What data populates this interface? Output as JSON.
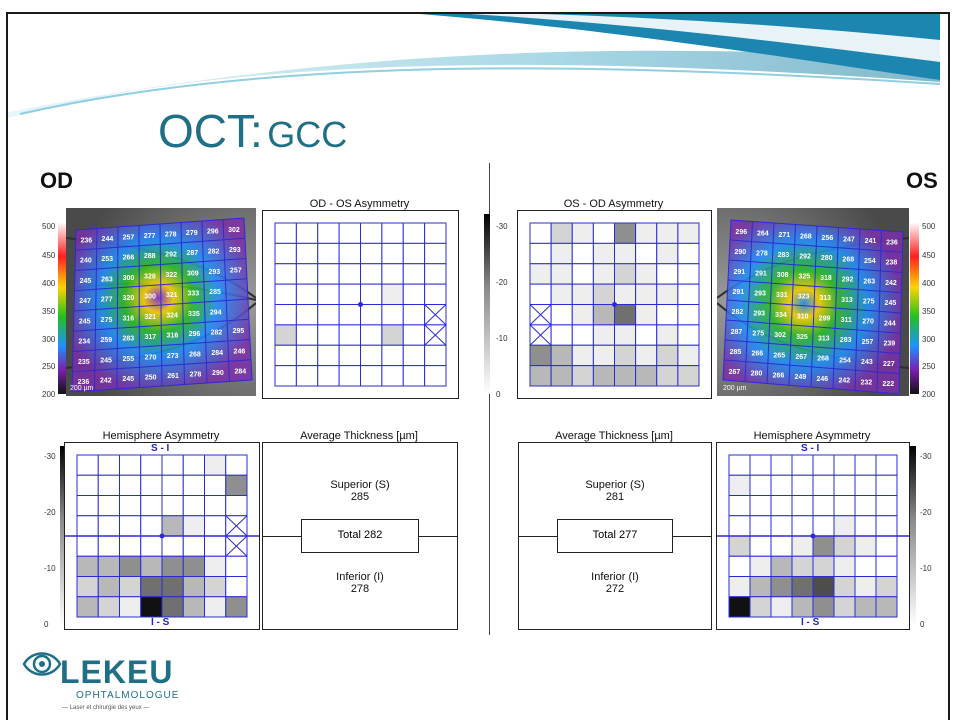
{
  "slide": {
    "title_main": "OCT:",
    "title_sub": "GCC"
  },
  "left_eye": {
    "label": "OD",
    "asym_title": "OD - OS Asymmetry",
    "hemi_title": "Hemisphere Asymmetry",
    "hemi_top": "S - I",
    "hemi_bottom": "I - S",
    "avg_title": "Average Thickness [µm]",
    "superior_label": "Superior (S)",
    "superior_value": "285",
    "total_label": "Total 282",
    "inferior_label": "Inferior (I)",
    "inferior_value": "278",
    "scale_bar": "200 µm",
    "thickness_scale": [
      "500",
      "450",
      "400",
      "350",
      "300",
      "250",
      "200"
    ],
    "diff_scale_top": [
      "-30",
      "-20",
      "-10",
      "0"
    ],
    "hemi_scale": [
      "-30",
      "-20",
      "-10",
      "0"
    ],
    "thickness_grid": [
      [
        "236",
        "244",
        "257",
        "277",
        "278",
        "279",
        "296",
        "302"
      ],
      [
        "240",
        "253",
        "266",
        "288",
        "292",
        "287",
        "282",
        "293"
      ],
      [
        "245",
        "263",
        "300",
        "328",
        "322",
        "309",
        "293",
        "257"
      ],
      [
        "247",
        "277",
        "320",
        "300",
        "321",
        "333",
        "285",
        ""
      ],
      [
        "245",
        "275",
        "316",
        "321",
        "324",
        "335",
        "294",
        ""
      ],
      [
        "234",
        "259",
        "283",
        "317",
        "316",
        "296",
        "282",
        "295"
      ],
      [
        "235",
        "245",
        "255",
        "270",
        "273",
        "268",
        "284",
        "246"
      ],
      [
        "236",
        "242",
        "245",
        "250",
        "261",
        "278",
        "290",
        "284"
      ]
    ],
    "asym_shades": [
      [
        0,
        0,
        0,
        0,
        0,
        0,
        0,
        0
      ],
      [
        0,
        0,
        0,
        0,
        0,
        0,
        0,
        0
      ],
      [
        0,
        0,
        0,
        0,
        0,
        0,
        0,
        0
      ],
      [
        0,
        0,
        0,
        0,
        0,
        1,
        0,
        0
      ],
      [
        0,
        0,
        0,
        0,
        0,
        0,
        0,
        0
      ],
      [
        2,
        0,
        0,
        0,
        0,
        2,
        0,
        0
      ],
      [
        0,
        0,
        0,
        0,
        0,
        0,
        0,
        0
      ],
      [
        0,
        0,
        0,
        0,
        0,
        0,
        0,
        0
      ]
    ],
    "hemi_shades": [
      [
        0,
        0,
        0,
        0,
        0,
        0,
        1,
        0
      ],
      [
        0,
        0,
        0,
        0,
        0,
        0,
        0,
        4
      ],
      [
        0,
        0,
        0,
        0,
        0,
        0,
        0,
        0
      ],
      [
        0,
        0,
        0,
        0,
        3,
        1,
        0,
        0
      ],
      [
        0,
        0,
        0,
        0,
        0,
        0,
        0,
        0
      ],
      [
        3,
        3,
        4,
        3,
        4,
        4,
        1,
        0
      ],
      [
        2,
        3,
        2,
        5,
        5,
        3,
        2,
        0
      ],
      [
        3,
        2,
        1,
        7,
        5,
        3,
        1,
        4
      ]
    ]
  },
  "right_eye": {
    "label": "OS",
    "asym_title": "OS - OD Asymmetry",
    "hemi_title": "Hemisphere Asymmetry",
    "hemi_top": "S - I",
    "hemi_bottom": "I - S",
    "avg_title": "Average Thickness [µm]",
    "superior_label": "Superior (S)",
    "superior_value": "281",
    "total_label": "Total 277",
    "inferior_label": "Inferior (I)",
    "inferior_value": "272",
    "scale_bar": "200 µm",
    "thickness_scale": [
      "500",
      "450",
      "400",
      "350",
      "300",
      "250",
      "200"
    ],
    "diff_scale": [
      "-30",
      "-20",
      "-10",
      "0"
    ],
    "hemi_scale": [
      "-30",
      "-20",
      "-10",
      "0"
    ],
    "thickness_grid": [
      [
        "296",
        "264",
        "271",
        "268",
        "256",
        "247",
        "241",
        "236"
      ],
      [
        "290",
        "278",
        "283",
        "292",
        "280",
        "268",
        "254",
        "238"
      ],
      [
        "291",
        "291",
        "308",
        "325",
        "318",
        "292",
        "263",
        "242"
      ],
      [
        "291",
        "293",
        "331",
        "323",
        "313",
        "313",
        "275",
        "245"
      ],
      [
        "282",
        "293",
        "334",
        "310",
        "299",
        "311",
        "270",
        "244"
      ],
      [
        "287",
        "275",
        "302",
        "325",
        "313",
        "283",
        "257",
        "239"
      ],
      [
        "285",
        "266",
        "265",
        "267",
        "268",
        "254",
        "243",
        "227"
      ],
      [
        "267",
        "280",
        "266",
        "249",
        "246",
        "242",
        "232",
        "222"
      ]
    ],
    "asym_shades": [
      [
        0,
        2,
        1,
        0,
        4,
        1,
        1,
        1
      ],
      [
        0,
        1,
        0,
        1,
        1,
        0,
        1,
        0
      ],
      [
        1,
        1,
        0,
        1,
        2,
        1,
        0,
        0
      ],
      [
        0,
        1,
        1,
        2,
        1,
        1,
        1,
        0
      ],
      [
        0,
        0,
        1,
        3,
        5,
        1,
        0,
        0
      ],
      [
        0,
        0,
        0,
        1,
        1,
        0,
        1,
        0
      ],
      [
        4,
        3,
        1,
        1,
        2,
        1,
        2,
        1
      ],
      [
        3,
        3,
        2,
        3,
        3,
        3,
        2,
        2
      ]
    ],
    "hemi_shades": [
      [
        0,
        0,
        0,
        0,
        0,
        0,
        0,
        0
      ],
      [
        1,
        0,
        0,
        0,
        0,
        0,
        0,
        0
      ],
      [
        0,
        0,
        0,
        0,
        0,
        0,
        0,
        0
      ],
      [
        0,
        0,
        0,
        0,
        0,
        1,
        0,
        0
      ],
      [
        2,
        0,
        0,
        1,
        4,
        2,
        1,
        0
      ],
      [
        0,
        1,
        3,
        2,
        2,
        1,
        0,
        0
      ],
      [
        1,
        3,
        4,
        5,
        6,
        2,
        1,
        2
      ],
      [
        7,
        2,
        1,
        3,
        4,
        2,
        3,
        3
      ]
    ]
  },
  "logo": {
    "name": "LEKEU",
    "sub": "OPHTALMOLOGUE",
    "tagline": "— Laser et chirurgie des yeux —"
  },
  "colors": {
    "title": "#1f6f86",
    "grid_line": "#2b2bd6",
    "frame": "#222222"
  }
}
